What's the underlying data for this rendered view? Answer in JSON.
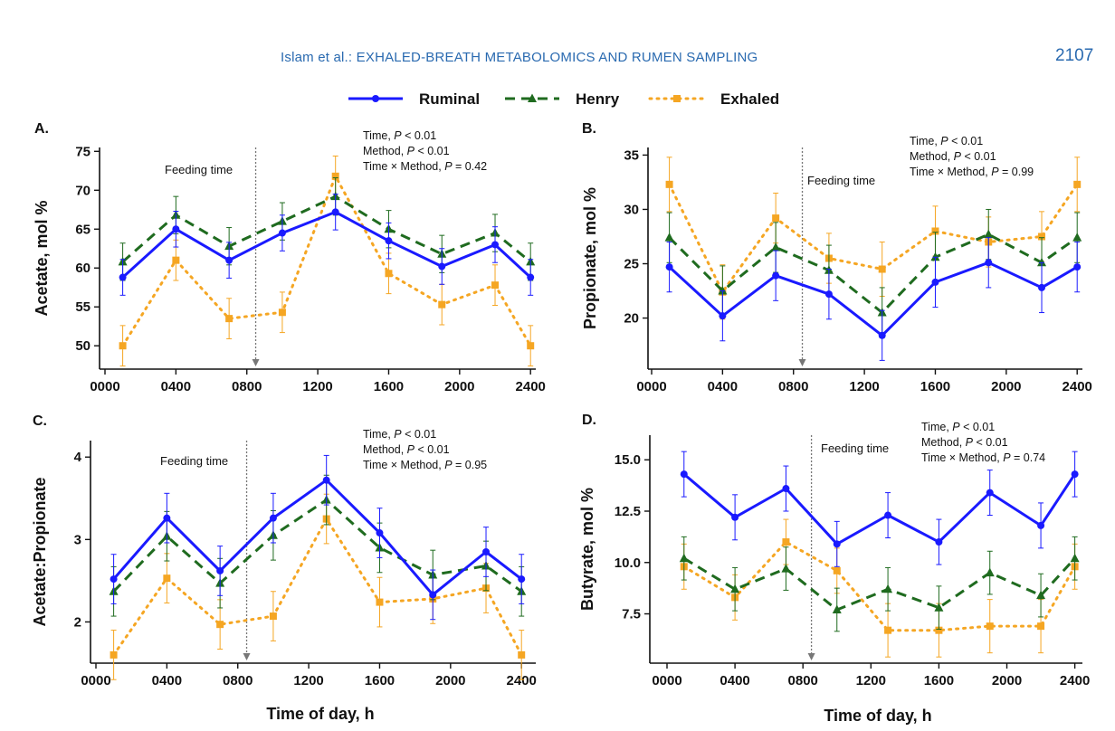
{
  "header": {
    "running_head": "Islam et al.: EXHALED-BREATH METABOLOMICS AND RUMEN SAMPLING",
    "page_number": "2107"
  },
  "legend": [
    {
      "name": "Ruminal",
      "color": "#1a1aff",
      "dash": "solid",
      "marker": "circle"
    },
    {
      "name": "Henry",
      "color": "#1f6b1f",
      "dash": "dashed",
      "marker": "triangle"
    },
    {
      "name": "Exhaled",
      "color": "#f5a623",
      "dash": "dotted",
      "marker": "square"
    }
  ],
  "shared_x_label": "Time of day, h",
  "chart_data": [
    {
      "type": "line",
      "panel": "A.",
      "ylabel": "Acetate, mol %",
      "x": [
        100,
        400,
        700,
        1000,
        1300,
        1600,
        1900,
        2200,
        2400
      ],
      "xticks": [
        0,
        400,
        800,
        1200,
        1600,
        2000,
        2400
      ],
      "xtick_labels": [
        "0000",
        "0400",
        "0800",
        "1200",
        "1600",
        "2000",
        "2400"
      ],
      "xlim": [
        0,
        2450
      ],
      "ylim": [
        47,
        75.5
      ],
      "yticks": [
        50,
        55,
        60,
        65,
        70,
        75
      ],
      "ytick_labels": [
        "50",
        "55",
        "60",
        "65",
        "70",
        "75"
      ],
      "feeding_time": 850,
      "feeding_label": "Feeding time",
      "stats": [
        {
          "label": "Time, ",
          "p": "P",
          "rest": " < 0.01"
        },
        {
          "label": "Method, ",
          "p": "P",
          "rest": " < 0.01"
        },
        {
          "label": "Time × Method, ",
          "p": "P",
          "rest": " = 0.42"
        }
      ],
      "series": [
        {
          "name": "Ruminal",
          "values": [
            58.8,
            65.0,
            61.0,
            64.5,
            67.2,
            63.5,
            60.2,
            63.0,
            58.8
          ],
          "err": [
            2.3,
            2.3,
            2.3,
            2.3,
            2.3,
            2.3,
            2.3,
            2.3,
            2.3
          ]
        },
        {
          "name": "Henry",
          "values": [
            60.8,
            66.8,
            62.8,
            66.0,
            69.2,
            65.0,
            61.8,
            64.5,
            60.8
          ],
          "err": [
            2.4,
            2.4,
            2.4,
            2.4,
            2.4,
            2.4,
            2.4,
            2.4,
            2.4
          ]
        },
        {
          "name": "Exhaled",
          "values": [
            50.0,
            61.0,
            53.5,
            54.3,
            71.8,
            59.3,
            55.3,
            57.8,
            50.0
          ],
          "err": [
            2.6,
            2.6,
            2.6,
            2.6,
            2.6,
            2.6,
            2.6,
            2.6,
            2.6
          ]
        }
      ]
    },
    {
      "type": "line",
      "panel": "B.",
      "ylabel": "Propionate, mol %",
      "x": [
        100,
        400,
        700,
        1000,
        1300,
        1600,
        1900,
        2200,
        2400
      ],
      "xticks": [
        0,
        400,
        800,
        1200,
        1600,
        2000,
        2400
      ],
      "xtick_labels": [
        "0000",
        "0400",
        "0800",
        "1200",
        "1600",
        "2000",
        "2400"
      ],
      "xlim": [
        0,
        2450
      ],
      "ylim": [
        15.3,
        35.7
      ],
      "yticks": [
        20,
        25,
        30,
        35
      ],
      "ytick_labels": [
        "20",
        "25",
        "30",
        "35"
      ],
      "feeding_time": 850,
      "feeding_label": "Feeding time",
      "stats": [
        {
          "label": "Time, ",
          "p": "P",
          "rest": " < 0.01"
        },
        {
          "label": "Method, ",
          "p": "P",
          "rest": " < 0.01"
        },
        {
          "label": "Time × Method, ",
          "p": "P",
          "rest": " = 0.99"
        }
      ],
      "series": [
        {
          "name": "Ruminal",
          "values": [
            24.7,
            20.2,
            23.9,
            22.2,
            18.4,
            23.3,
            25.1,
            22.8,
            24.7
          ],
          "err": [
            2.3,
            2.3,
            2.3,
            2.3,
            2.3,
            2.3,
            2.3,
            2.3,
            2.3
          ]
        },
        {
          "name": "Henry",
          "values": [
            27.4,
            22.5,
            26.5,
            24.4,
            20.5,
            25.6,
            27.7,
            25.1,
            27.4
          ],
          "err": [
            2.3,
            2.3,
            2.3,
            2.3,
            2.3,
            2.3,
            2.3,
            2.3,
            2.3
          ]
        },
        {
          "name": "Exhaled",
          "values": [
            32.3,
            22.4,
            29.2,
            25.5,
            24.5,
            28.0,
            27.0,
            27.5,
            32.3
          ],
          "err": [
            2.5,
            2.5,
            2.3,
            2.3,
            2.5,
            2.3,
            2.3,
            2.3,
            2.5
          ]
        }
      ]
    },
    {
      "type": "line",
      "panel": "C.",
      "ylabel": "Acetate:Propionate",
      "x": [
        100,
        400,
        700,
        1000,
        1300,
        1600,
        1900,
        2200,
        2400
      ],
      "xticks": [
        0,
        400,
        800,
        1200,
        1600,
        2000,
        2400
      ],
      "xtick_labels": [
        "0000",
        "0400",
        "0800",
        "1200",
        "1600",
        "2000",
        "2400"
      ],
      "xlim": [
        0,
        2450
      ],
      "ylim": [
        1.5,
        4.2
      ],
      "yticks": [
        2,
        3,
        4
      ],
      "ytick_labels": [
        "2",
        "3",
        "4"
      ],
      "feeding_time": 850,
      "feeding_label": "Feeding time",
      "stats": [
        {
          "label": "Time, ",
          "p": "P",
          "rest": " < 0.01"
        },
        {
          "label": "Method, ",
          "p": "P",
          "rest": " < 0.01"
        },
        {
          "label": "Time × Method, ",
          "p": "P",
          "rest": " = 0.95"
        }
      ],
      "series": [
        {
          "name": "Ruminal",
          "values": [
            2.52,
            3.26,
            2.62,
            3.26,
            3.72,
            3.08,
            2.33,
            2.85,
            2.52
          ],
          "err": [
            0.3,
            0.3,
            0.3,
            0.3,
            0.3,
            0.3,
            0.3,
            0.3,
            0.3
          ]
        },
        {
          "name": "Henry",
          "values": [
            2.37,
            3.04,
            2.47,
            3.05,
            3.48,
            2.9,
            2.57,
            2.68,
            2.37
          ],
          "err": [
            0.3,
            0.3,
            0.3,
            0.3,
            0.3,
            0.3,
            0.3,
            0.3,
            0.3
          ]
        },
        {
          "name": "Exhaled",
          "values": [
            1.6,
            2.53,
            1.97,
            2.07,
            3.25,
            2.24,
            2.28,
            2.41,
            1.6
          ],
          "err": [
            0.3,
            0.3,
            0.3,
            0.3,
            0.3,
            0.3,
            0.3,
            0.3,
            0.3
          ]
        }
      ]
    },
    {
      "type": "line",
      "panel": "D.",
      "ylabel": "Butyrate, mol %",
      "x": [
        100,
        400,
        700,
        1000,
        1300,
        1600,
        1900,
        2200,
        2400
      ],
      "xticks": [
        0,
        400,
        800,
        1200,
        1600,
        2000,
        2400
      ],
      "xtick_labels": [
        "0000",
        "0400",
        "0800",
        "1200",
        "1600",
        "2000",
        "2400"
      ],
      "xlim": [
        0,
        2450
      ],
      "ylim": [
        5.1,
        16.2
      ],
      "yticks": [
        7.5,
        10.0,
        12.5,
        15.0
      ],
      "ytick_labels": [
        "7.5",
        "10.0",
        "12.5",
        "15.0"
      ],
      "feeding_time": 850,
      "feeding_label": "Feeding time",
      "stats": [
        {
          "label": "Time, ",
          "p": "P",
          "rest": " < 0.01"
        },
        {
          "label": "Method, ",
          "p": "P",
          "rest": " < 0.01"
        },
        {
          "label": "Time × Method, ",
          "p": "P",
          "rest": " = 0.74"
        }
      ],
      "series": [
        {
          "name": "Ruminal",
          "values": [
            14.3,
            12.2,
            13.6,
            10.9,
            12.3,
            11.0,
            13.4,
            11.8,
            14.3
          ],
          "err": [
            1.1,
            1.1,
            1.1,
            1.1,
            1.1,
            1.1,
            1.1,
            1.1,
            1.1
          ]
        },
        {
          "name": "Henry",
          "values": [
            10.2,
            8.7,
            9.7,
            7.7,
            8.7,
            7.8,
            9.5,
            8.4,
            10.2
          ],
          "err": [
            1.05,
            1.05,
            1.05,
            1.05,
            1.05,
            1.05,
            1.05,
            1.05,
            1.05
          ]
        },
        {
          "name": "Exhaled",
          "values": [
            9.8,
            8.3,
            11.0,
            9.6,
            6.7,
            6.7,
            6.9,
            6.9,
            9.8
          ],
          "err": [
            1.1,
            1.1,
            1.1,
            1.1,
            1.3,
            1.3,
            1.3,
            1.3,
            1.1
          ]
        }
      ]
    }
  ]
}
